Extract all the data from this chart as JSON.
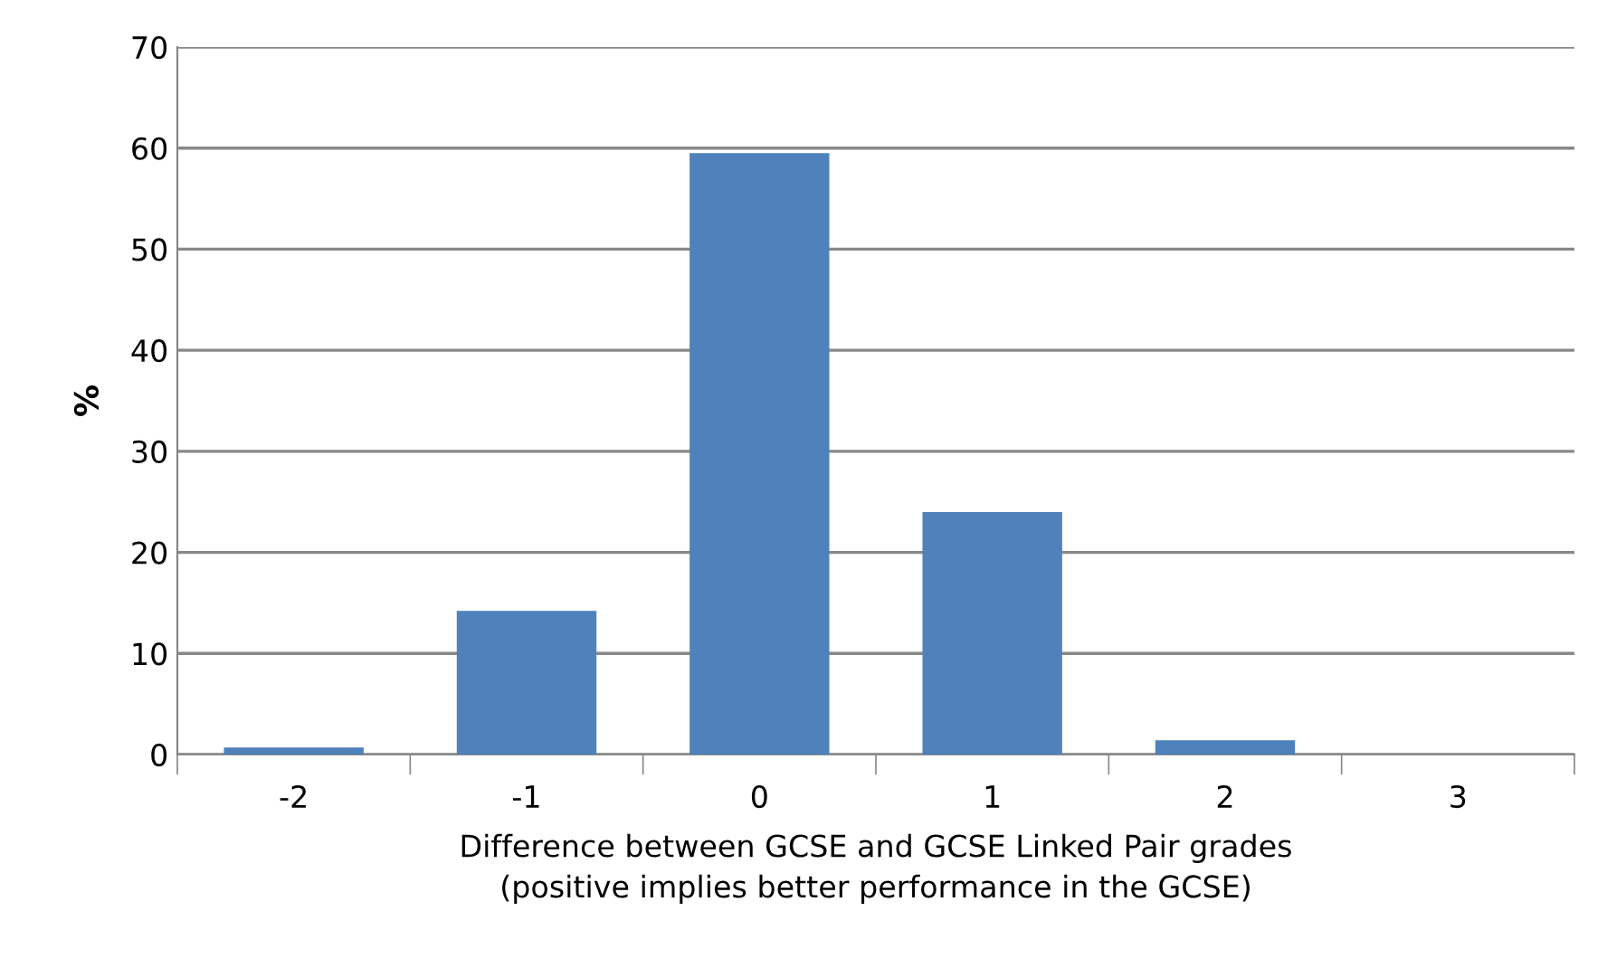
{
  "chart_data": {
    "type": "bar",
    "xlabel": "Difference between GCSE and GCSE Linked Pair grades\n(positive implies better performance in the GCSE)",
    "ylabel": "%",
    "categories": [
      "-2",
      "-1",
      "0",
      "1",
      "2",
      "3"
    ],
    "values": [
      0.7,
      14.2,
      59.5,
      24,
      1.4,
      0
    ],
    "color": "#4f81bd",
    "ylim": [
      0,
      70
    ],
    "yticks": [
      0,
      10,
      20,
      30,
      40,
      50,
      60,
      70
    ],
    "grid": "y",
    "legend": false
  }
}
